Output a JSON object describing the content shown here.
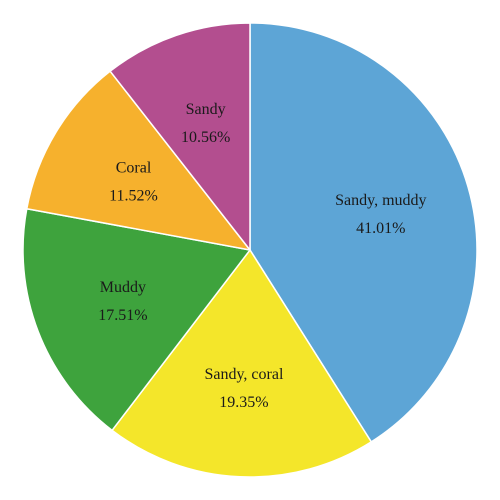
{
  "chart_data": {
    "type": "pie",
    "title": "",
    "start": "12 o'clock",
    "direction": "clockwise",
    "slices": [
      {
        "name": "Sandy, muddy",
        "value": 41.01,
        "value_label": "41.01%",
        "color": "#5DA5D6"
      },
      {
        "name": "Sandy, coral",
        "value": 19.35,
        "value_label": "19.35%",
        "color": "#F4E62A"
      },
      {
        "name": "Muddy",
        "value": 17.51,
        "value_label": "17.51%",
        "color": "#3EA33D"
      },
      {
        "name": "Coral",
        "value": 11.52,
        "value_label": "11.52%",
        "color": "#F6B12D"
      },
      {
        "name": "Sandy",
        "value": 10.56,
        "value_label": "10.56%",
        "color": "#B34E8F"
      }
    ]
  }
}
